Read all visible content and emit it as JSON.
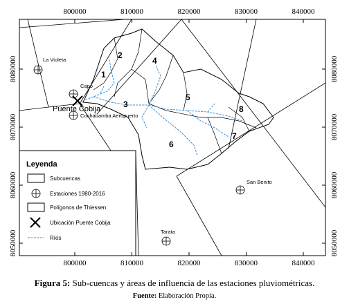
{
  "map": {
    "x_ticks": [
      800000,
      810000,
      820000,
      830000,
      840000
    ],
    "y_ticks": [
      8080000,
      8070000,
      8060000,
      8050000
    ],
    "subbasins": [
      "1",
      "2",
      "3",
      "4",
      "5",
      "6",
      "7",
      "8"
    ],
    "stations": [
      "La Violeta",
      "Capo",
      "Cochabamba Aeropuerto",
      "San Benito",
      "Tarata"
    ],
    "site": "Puente Cobija"
  },
  "legend": {
    "title": "Leyenda",
    "items": [
      "Subcuencas",
      "Estaciones 1980-2016",
      "Polígonos de Thiessen",
      "Ubicación Puente Cobija",
      "Ríos"
    ]
  },
  "caption": {
    "label": "Figura 5:",
    "text": "Sub-cuencas y áreas de influencia de las estaciones pluviométricas."
  },
  "source": {
    "label": "Fuente:",
    "text": "Elaboración Propia."
  }
}
